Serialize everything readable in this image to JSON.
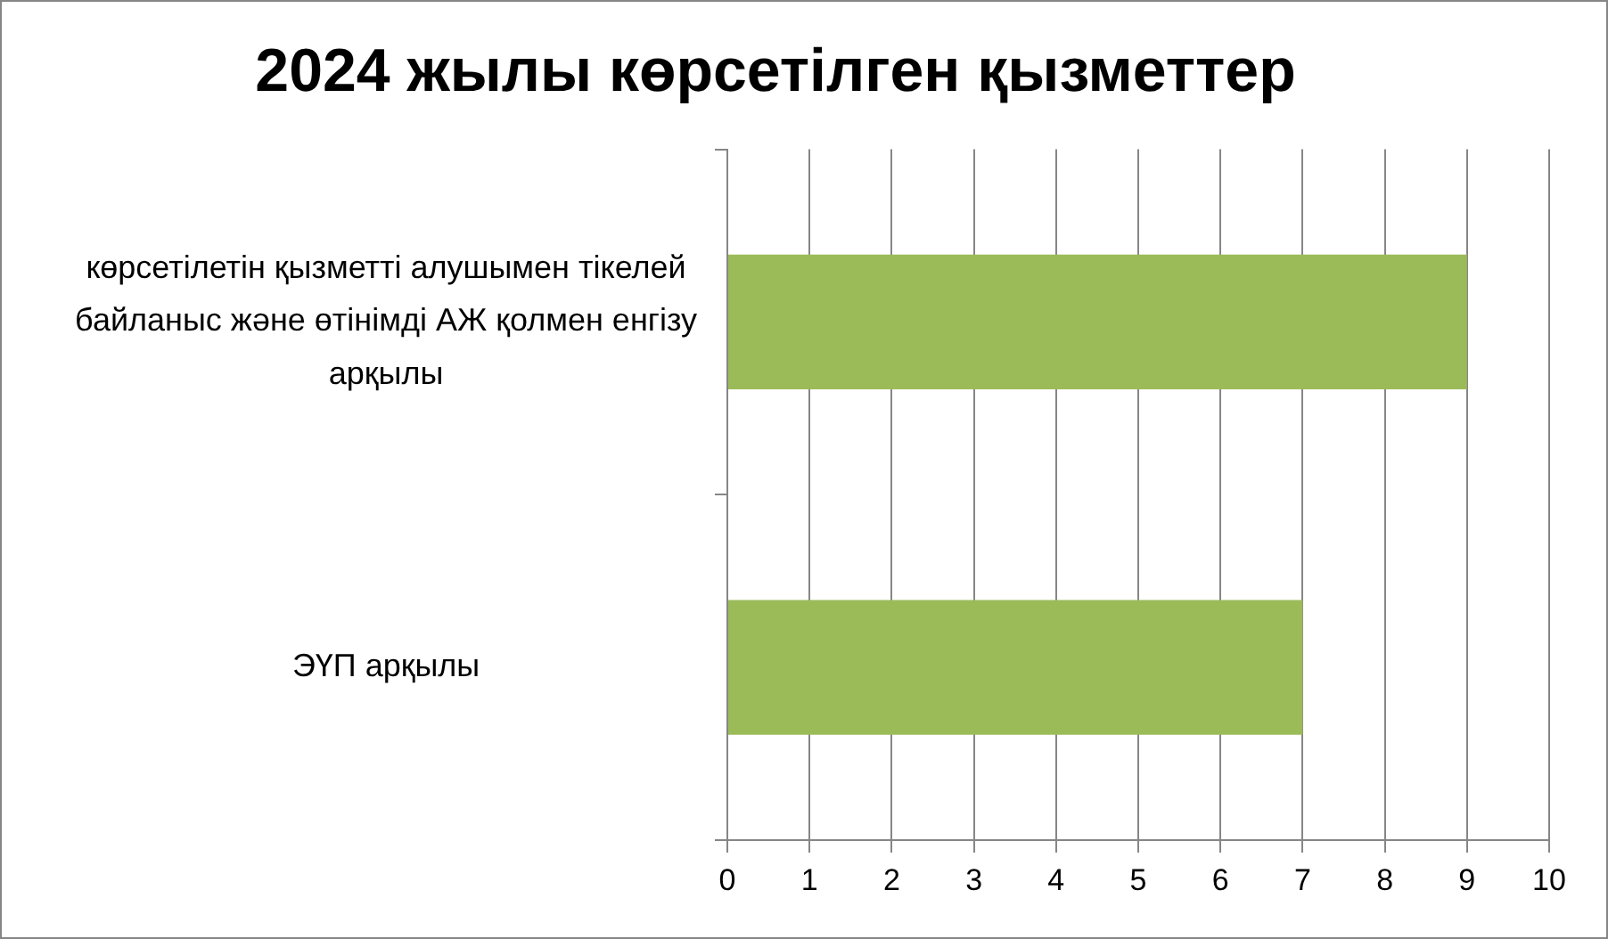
{
  "chart_data": {
    "type": "bar",
    "orientation": "horizontal",
    "title": "2024 жылы көрсетілген қызметтер",
    "categories": [
      "көрсетілетін қызметті алушымен тікелей байланыс және өтінімді АЖ қолмен енгізу арқылы",
      "ЭҮП арқылы"
    ],
    "values": [
      9,
      7
    ],
    "color": "#9bbb59",
    "xlim": [
      0,
      10
    ],
    "xticks": [
      0,
      1,
      2,
      3,
      4,
      5,
      6,
      7,
      8,
      9,
      10
    ],
    "grid": "x"
  }
}
